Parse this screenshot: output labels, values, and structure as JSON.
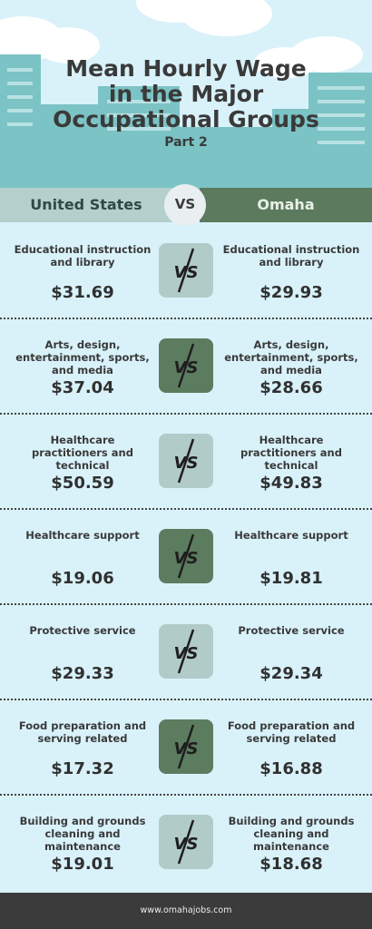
{
  "title": {
    "line1": "Mean Hourly Wage",
    "line2": "in the Major",
    "line3": "Occupational Groups",
    "subtitle": "Part 2"
  },
  "compare": {
    "left": "United States",
    "vs": "VS",
    "right": "Omaha"
  },
  "badge_text": "VS",
  "colors": {
    "background": "#d9f2fa",
    "building": "#7cc3c5",
    "left_band": "#b4cfcc",
    "right_band": "#5b7a5e",
    "footer": "#3b3b3b"
  },
  "rows": [
    {
      "us_label": "Educational instruction and library",
      "us_value": "$31.69",
      "om_label": "Educational instruction and library",
      "om_value": "$29.93",
      "badge": "light"
    },
    {
      "us_label": "Arts, design, entertainment, sports, and media",
      "us_value": "$37.04",
      "om_label": "Arts, design, entertainment, sports, and media",
      "om_value": "$28.66",
      "badge": "dark"
    },
    {
      "us_label": "Healthcare practitioners and technical",
      "us_value": "$50.59",
      "om_label": "Healthcare practitioners and technical",
      "om_value": "$49.83",
      "badge": "light"
    },
    {
      "us_label": "Healthcare support",
      "us_value": "$19.06",
      "om_label": "Healthcare support",
      "om_value": "$19.81",
      "badge": "dark"
    },
    {
      "us_label": "Protective service",
      "us_value": "$29.33",
      "om_label": "Protective service",
      "om_value": "$29.34",
      "badge": "light"
    },
    {
      "us_label": "Food preparation and serving related",
      "us_value": "$17.32",
      "om_label": "Food preparation and serving related",
      "om_value": "$16.88",
      "badge": "dark"
    },
    {
      "us_label": "Building and grounds cleaning and maintenance",
      "us_value": "$19.01",
      "om_label": "Building and grounds cleaning and maintenance",
      "om_value": "$18.68",
      "badge": "light"
    }
  ],
  "footer": {
    "url": "www.omahajobs.com"
  }
}
